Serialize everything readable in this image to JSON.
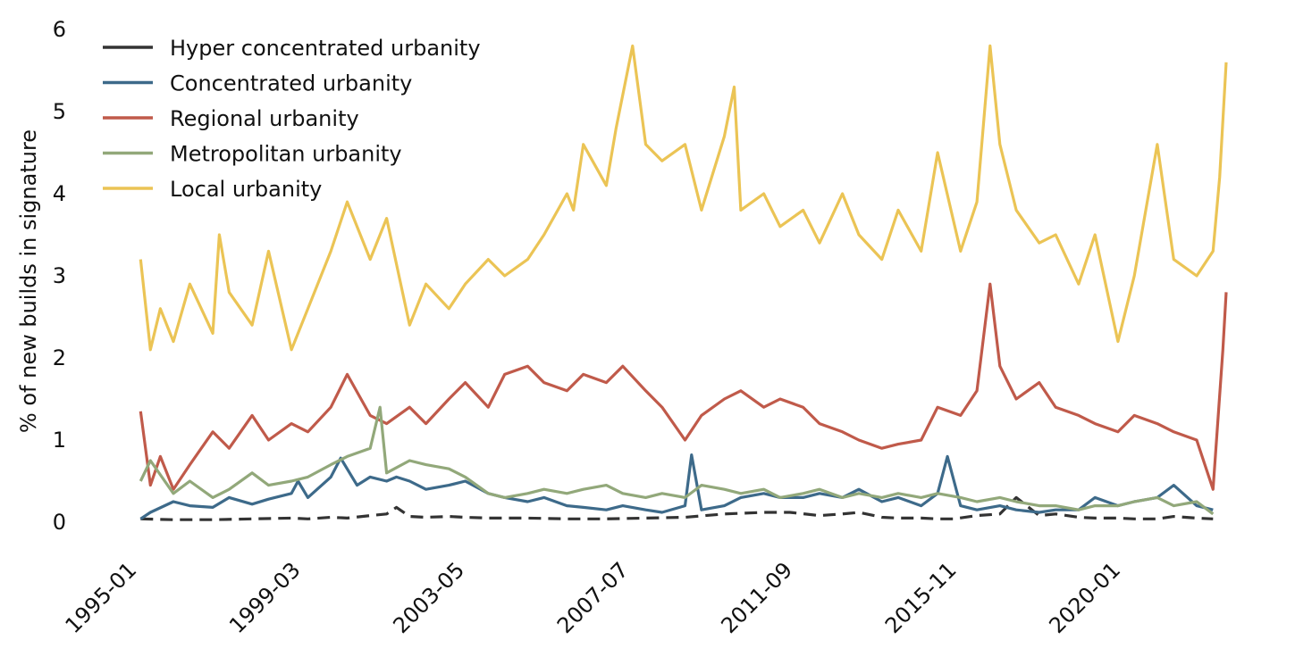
{
  "chart_data": {
    "type": "line",
    "title": "",
    "xlabel": "",
    "ylabel": "% of new builds in signature",
    "xlim": [
      "1995-01",
      "2022-10"
    ],
    "ylim": [
      0,
      6
    ],
    "yticks": [
      "0",
      "1",
      "2",
      "3",
      "4",
      "5",
      "6"
    ],
    "xticks": [
      "1995-01",
      "1999-03",
      "2003-05",
      "2007-07",
      "2011-09",
      "2015-11",
      "2020-01"
    ],
    "grid": false,
    "legend_position": "top-left",
    "series": [
      {
        "name": "Hyper concentrated urbanity",
        "color": "#333333",
        "x": [
          "1995-03",
          "1996-01",
          "1997-01",
          "1998-01",
          "1999-01",
          "1999-06",
          "2000-01",
          "2000-06",
          "2001-01",
          "2001-06",
          "2001-09",
          "2002-01",
          "2002-06",
          "2003-01",
          "2003-06",
          "2004-01",
          "2005-01",
          "2006-01",
          "2007-01",
          "2008-01",
          "2009-01",
          "2010-01",
          "2011-01",
          "2011-09",
          "2012-06",
          "2013-01",
          "2013-06",
          "2014-01",
          "2014-06",
          "2015-01",
          "2015-06",
          "2015-11",
          "2016-06",
          "2017-01",
          "2017-06",
          "2018-01",
          "2018-06",
          "2019-01",
          "2019-06",
          "2020-01",
          "2020-06",
          "2021-01",
          "2021-06",
          "2022-01",
          "2022-06"
        ],
        "values": [
          0.04,
          0.03,
          0.03,
          0.04,
          0.05,
          0.04,
          0.06,
          0.05,
          0.08,
          0.1,
          0.18,
          0.07,
          0.06,
          0.07,
          0.06,
          0.05,
          0.05,
          0.04,
          0.04,
          0.05,
          0.06,
          0.1,
          0.12,
          0.12,
          0.08,
          0.1,
          0.12,
          0.06,
          0.05,
          0.05,
          0.04,
          0.04,
          0.08,
          0.1,
          0.3,
          0.08,
          0.1,
          0.06,
          0.05,
          0.05,
          0.04,
          0.04,
          0.07,
          0.05,
          0.04
        ]
      },
      {
        "name": "Concentrated urbanity",
        "color": "#3d6a8a",
        "x": [
          "1995-03",
          "1995-06",
          "1996-01",
          "1996-06",
          "1997-01",
          "1997-06",
          "1998-01",
          "1998-06",
          "1999-01",
          "1999-03",
          "1999-06",
          "2000-01",
          "2000-04",
          "2000-09",
          "2001-01",
          "2001-06",
          "2001-09",
          "2002-01",
          "2002-06",
          "2003-01",
          "2003-06",
          "2004-01",
          "2004-06",
          "2005-01",
          "2005-06",
          "2006-01",
          "2006-06",
          "2007-01",
          "2007-06",
          "2008-01",
          "2008-06",
          "2009-01",
          "2009-03",
          "2009-06",
          "2010-01",
          "2010-06",
          "2011-01",
          "2011-06",
          "2012-01",
          "2012-06",
          "2013-01",
          "2013-06",
          "2014-01",
          "2014-06",
          "2015-01",
          "2015-06",
          "2015-09",
          "2016-01",
          "2016-06",
          "2017-01",
          "2017-06",
          "2018-01",
          "2018-06",
          "2019-01",
          "2019-06",
          "2020-01",
          "2020-06",
          "2021-01",
          "2021-06",
          "2022-01",
          "2022-06"
        ],
        "values": [
          0.04,
          0.12,
          0.25,
          0.2,
          0.18,
          0.3,
          0.22,
          0.28,
          0.35,
          0.5,
          0.3,
          0.55,
          0.78,
          0.45,
          0.55,
          0.5,
          0.55,
          0.5,
          0.4,
          0.45,
          0.5,
          0.35,
          0.3,
          0.25,
          0.3,
          0.2,
          0.18,
          0.15,
          0.2,
          0.15,
          0.12,
          0.2,
          0.82,
          0.15,
          0.2,
          0.3,
          0.35,
          0.3,
          0.3,
          0.35,
          0.3,
          0.4,
          0.25,
          0.3,
          0.2,
          0.35,
          0.8,
          0.2,
          0.15,
          0.2,
          0.15,
          0.12,
          0.15,
          0.15,
          0.3,
          0.2,
          0.25,
          0.3,
          0.45,
          0.2,
          0.15
        ]
      },
      {
        "name": "Regional urbanity",
        "color": "#c05a4a",
        "x": [
          "1995-03",
          "1995-06",
          "1995-09",
          "1996-01",
          "1996-06",
          "1997-01",
          "1997-06",
          "1998-01",
          "1998-06",
          "1999-01",
          "1999-06",
          "2000-01",
          "2000-06",
          "2001-01",
          "2001-06",
          "2002-01",
          "2002-06",
          "2003-01",
          "2003-06",
          "2004-01",
          "2004-06",
          "2005-01",
          "2005-06",
          "2006-01",
          "2006-06",
          "2007-01",
          "2007-06",
          "2008-01",
          "2008-06",
          "2009-01",
          "2009-06",
          "2010-01",
          "2010-06",
          "2011-01",
          "2011-06",
          "2012-01",
          "2012-06",
          "2013-01",
          "2013-06",
          "2014-01",
          "2014-06",
          "2015-01",
          "2015-06",
          "2016-01",
          "2016-06",
          "2016-10",
          "2017-01",
          "2017-06",
          "2018-01",
          "2018-06",
          "2019-01",
          "2019-06",
          "2020-01",
          "2020-06",
          "2021-01",
          "2021-06",
          "2022-01",
          "2022-06",
          "2022-09",
          "2022-10"
        ],
        "values": [
          1.35,
          0.45,
          0.8,
          0.4,
          0.7,
          1.1,
          0.9,
          1.3,
          1.0,
          1.2,
          1.1,
          1.4,
          1.8,
          1.3,
          1.2,
          1.4,
          1.2,
          1.5,
          1.7,
          1.4,
          1.8,
          1.9,
          1.7,
          1.6,
          1.8,
          1.7,
          1.9,
          1.6,
          1.4,
          1.0,
          1.3,
          1.5,
          1.6,
          1.4,
          1.5,
          1.4,
          1.2,
          1.1,
          1.0,
          0.9,
          0.95,
          1.0,
          1.4,
          1.3,
          1.6,
          2.9,
          1.9,
          1.5,
          1.7,
          1.4,
          1.3,
          1.2,
          1.1,
          1.3,
          1.2,
          1.1,
          1.0,
          0.4,
          2.1,
          2.8
        ]
      },
      {
        "name": "Metropolitan urbanity",
        "color": "#92a87a",
        "x": [
          "1995-03",
          "1995-06",
          "1996-01",
          "1996-06",
          "1997-01",
          "1997-06",
          "1998-01",
          "1998-06",
          "1999-01",
          "1999-06",
          "2000-01",
          "2000-06",
          "2001-01",
          "2001-04",
          "2001-06",
          "2002-01",
          "2002-06",
          "2003-01",
          "2003-06",
          "2004-01",
          "2004-06",
          "2005-01",
          "2005-06",
          "2006-01",
          "2006-06",
          "2007-01",
          "2007-06",
          "2008-01",
          "2008-06",
          "2009-01",
          "2009-06",
          "2010-01",
          "2010-06",
          "2011-01",
          "2011-06",
          "2012-01",
          "2012-06",
          "2013-01",
          "2013-06",
          "2014-01",
          "2014-06",
          "2015-01",
          "2015-06",
          "2016-01",
          "2016-06",
          "2017-01",
          "2017-06",
          "2018-01",
          "2018-06",
          "2019-01",
          "2019-06",
          "2020-01",
          "2020-06",
          "2021-01",
          "2021-06",
          "2022-01",
          "2022-06"
        ],
        "values": [
          0.5,
          0.75,
          0.35,
          0.5,
          0.3,
          0.4,
          0.6,
          0.45,
          0.5,
          0.55,
          0.7,
          0.8,
          0.9,
          1.4,
          0.6,
          0.75,
          0.7,
          0.65,
          0.55,
          0.35,
          0.3,
          0.35,
          0.4,
          0.35,
          0.4,
          0.45,
          0.35,
          0.3,
          0.35,
          0.3,
          0.45,
          0.4,
          0.35,
          0.4,
          0.3,
          0.35,
          0.4,
          0.3,
          0.35,
          0.3,
          0.35,
          0.3,
          0.35,
          0.3,
          0.25,
          0.3,
          0.25,
          0.2,
          0.2,
          0.15,
          0.2,
          0.2,
          0.25,
          0.3,
          0.2,
          0.25,
          0.1
        ]
      },
      {
        "name": "Local urbanity",
        "color": "#ebc455",
        "x": [
          "1995-03",
          "1995-06",
          "1995-09",
          "1996-01",
          "1996-06",
          "1997-01",
          "1997-03",
          "1997-06",
          "1998-01",
          "1998-06",
          "1999-01",
          "1999-06",
          "2000-01",
          "2000-06",
          "2001-01",
          "2001-06",
          "2002-01",
          "2002-06",
          "2003-01",
          "2003-06",
          "2004-01",
          "2004-06",
          "2005-01",
          "2005-06",
          "2006-01",
          "2006-03",
          "2006-06",
          "2007-01",
          "2007-04",
          "2007-09",
          "2008-01",
          "2008-06",
          "2009-01",
          "2009-06",
          "2010-01",
          "2010-04",
          "2010-06",
          "2011-01",
          "2011-06",
          "2012-01",
          "2012-06",
          "2013-01",
          "2013-06",
          "2014-01",
          "2014-06",
          "2015-01",
          "2015-06",
          "2016-01",
          "2016-06",
          "2016-10",
          "2017-01",
          "2017-06",
          "2018-01",
          "2018-06",
          "2019-01",
          "2019-06",
          "2020-01",
          "2020-06",
          "2021-01",
          "2021-06",
          "2022-01",
          "2022-06",
          "2022-08",
          "2022-10"
        ],
        "values": [
          3.2,
          2.1,
          2.6,
          2.2,
          2.9,
          2.3,
          3.5,
          2.8,
          2.4,
          3.3,
          2.1,
          2.6,
          3.3,
          3.9,
          3.2,
          3.7,
          2.4,
          2.9,
          2.6,
          2.9,
          3.2,
          3.0,
          3.2,
          3.5,
          4.0,
          3.8,
          4.6,
          4.1,
          4.8,
          5.8,
          4.6,
          4.4,
          4.6,
          3.8,
          4.7,
          5.3,
          3.8,
          4.0,
          3.6,
          3.8,
          3.4,
          4.0,
          3.5,
          3.2,
          3.8,
          3.3,
          4.5,
          3.3,
          3.9,
          5.8,
          4.6,
          3.8,
          3.4,
          3.5,
          2.9,
          3.5,
          2.2,
          3.0,
          4.6,
          3.2,
          3.0,
          3.3,
          4.2,
          5.6
        ]
      }
    ]
  }
}
